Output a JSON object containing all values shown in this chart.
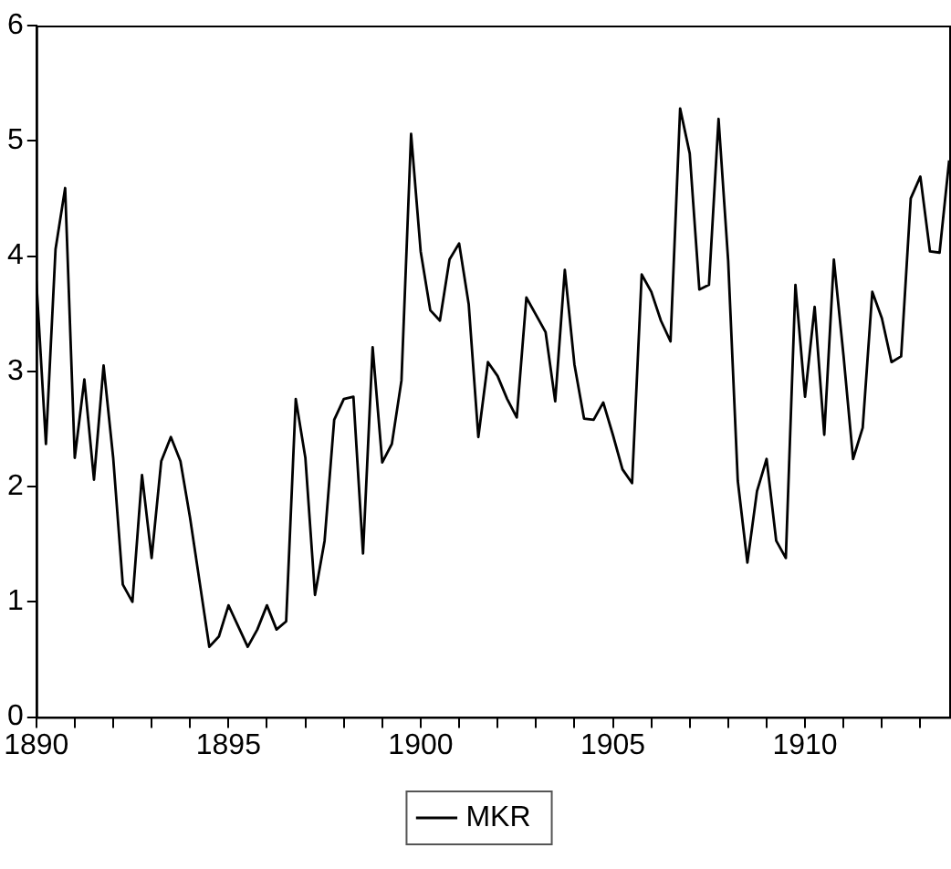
{
  "chart_data": {
    "type": "line",
    "xlim": [
      1890,
      1913.75
    ],
    "ylim": [
      0,
      6
    ],
    "xticks": [
      1890,
      {
        "value": 1891,
        "label": null
      },
      {
        "value": 1892,
        "label": null
      },
      {
        "value": 1893,
        "label": null
      },
      {
        "value": 1894,
        "label": null
      },
      1895,
      {
        "value": 1896,
        "label": null
      },
      {
        "value": 1897,
        "label": null
      },
      {
        "value": 1898,
        "label": null
      },
      {
        "value": 1899,
        "label": null
      },
      1900,
      {
        "value": 1901,
        "label": null
      },
      {
        "value": 1902,
        "label": null
      },
      {
        "value": 1903,
        "label": null
      },
      {
        "value": 1904,
        "label": null
      },
      1905,
      {
        "value": 1906,
        "label": null
      },
      {
        "value": 1907,
        "label": null
      },
      {
        "value": 1908,
        "label": null
      },
      {
        "value": 1909,
        "label": null
      },
      1910,
      {
        "value": 1911,
        "label": null
      },
      {
        "value": 1912,
        "label": null
      },
      {
        "value": 1913,
        "label": null
      }
    ],
    "yticks": [
      0,
      1,
      2,
      3,
      4,
      5,
      6
    ],
    "x": [
      1890,
      1890.25,
      1890.5,
      1890.75,
      1891,
      1891.25,
      1891.5,
      1891.75,
      1892,
      1892.25,
      1892.5,
      1892.75,
      1893,
      1893.25,
      1893.5,
      1893.75,
      1894,
      1894.25,
      1894.5,
      1894.75,
      1895,
      1895.25,
      1895.5,
      1895.75,
      1896,
      1896.25,
      1896.5,
      1896.75,
      1897,
      1897.25,
      1897.5,
      1897.75,
      1898,
      1898.25,
      1898.5,
      1898.75,
      1899,
      1899.25,
      1899.5,
      1899.75,
      1900,
      1900.25,
      1900.5,
      1900.75,
      1901,
      1901.25,
      1901.5,
      1901.75,
      1902,
      1902.25,
      1902.5,
      1902.75,
      1903,
      1903.25,
      1903.5,
      1903.75,
      1904,
      1904.25,
      1904.5,
      1904.75,
      1905,
      1905.25,
      1905.5,
      1905.75,
      1906,
      1906.25,
      1906.5,
      1906.75,
      1907,
      1907.25,
      1907.5,
      1907.75,
      1908,
      1908.25,
      1908.5,
      1908.75,
      1909,
      1909.25,
      1909.5,
      1909.75,
      1910,
      1910.25,
      1910.5,
      1910.75,
      1911,
      1911.25,
      1911.5,
      1911.75,
      1912,
      1912.25,
      1912.5,
      1912.75,
      1913,
      1913.25,
      1913.5,
      1913.75
    ],
    "series": [
      {
        "name": "MKR",
        "color": "#000000",
        "values": [
          3.79,
          2.37,
          4.06,
          4.59,
          2.25,
          2.93,
          2.06,
          3.05,
          2.25,
          1.15,
          1.0,
          2.1,
          1.38,
          2.22,
          2.43,
          2.22,
          1.73,
          1.17,
          0.61,
          0.7,
          0.97,
          0.79,
          0.61,
          0.76,
          0.97,
          0.76,
          0.83,
          2.76,
          2.25,
          1.06,
          1.53,
          2.58,
          2.76,
          2.78,
          1.42,
          3.21,
          2.21,
          2.37,
          2.92,
          5.06,
          4.04,
          3.53,
          3.44,
          3.97,
          4.11,
          3.58,
          2.43,
          3.08,
          2.96,
          2.76,
          2.6,
          3.64,
          3.49,
          3.34,
          2.74,
          3.88,
          3.06,
          2.59,
          2.58,
          2.73,
          2.45,
          2.15,
          2.03,
          3.84,
          3.69,
          3.44,
          3.26,
          5.28,
          4.89,
          3.71,
          3.75,
          5.19,
          3.96,
          2.05,
          1.34,
          1.96,
          2.24,
          1.53,
          1.38,
          3.75,
          2.78,
          3.56,
          2.45,
          3.97,
          3.14,
          2.24,
          2.51,
          3.69,
          3.46,
          3.08,
          3.13,
          4.5,
          4.69,
          4.04,
          4.03,
          4.83
        ]
      }
    ],
    "grid": false,
    "legend": "bottom",
    "marker": "none",
    "line_style": "solid"
  }
}
